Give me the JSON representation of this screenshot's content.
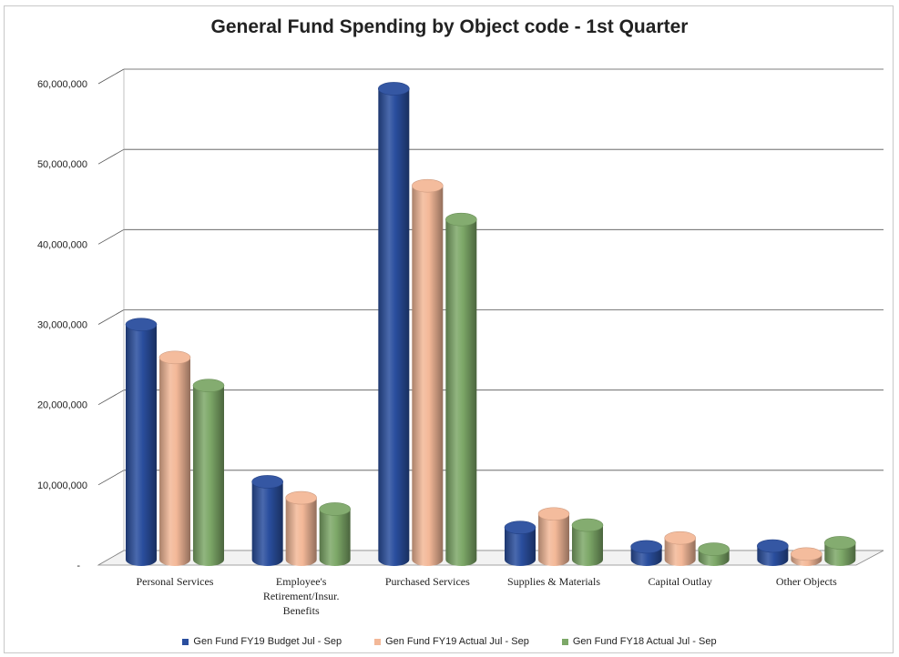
{
  "chart_data": {
    "type": "bar",
    "title": "General Fund Spending by Object code - 1st Quarter",
    "categories": [
      [
        "Personal Services"
      ],
      [
        "Employee's",
        "Retirement/Insur.",
        "Benefits"
      ],
      [
        "Purchased Services"
      ],
      [
        "Supplies & Materials"
      ],
      [
        "Capital Outlay"
      ],
      [
        "Other Objects"
      ]
    ],
    "series": [
      {
        "name": "Gen Fund FY19 Budget Jul - Sep",
        "color": "#2a4e9e",
        "values": [
          29300000,
          9700000,
          58700000,
          4000000,
          1600000,
          1700000
        ]
      },
      {
        "name": "Gen Fund FY19 Actual Jul - Sep",
        "color": "#f3b898",
        "values": [
          25200000,
          7700000,
          46600000,
          5700000,
          2700000,
          700000
        ]
      },
      {
        "name": "Gen Fund FY18 Actual Jul - Sep",
        "color": "#7da868",
        "values": [
          21700000,
          6300000,
          42400000,
          4300000,
          1300000,
          2100000
        ]
      }
    ],
    "yticks": [
      "-",
      "10,000,000",
      "20,000,000",
      "30,000,000",
      "40,000,000",
      "50,000,000",
      "60,000,000"
    ],
    "ylim": [
      0,
      60000000
    ],
    "grid": true,
    "legend": "bottom"
  }
}
